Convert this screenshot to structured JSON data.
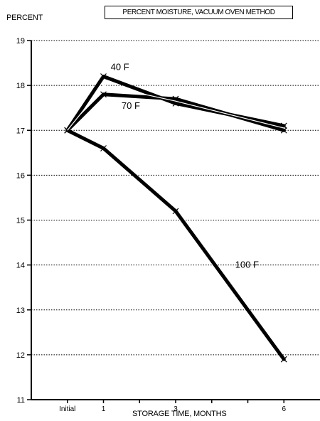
{
  "chart_data": {
    "type": "line",
    "title": "PERCENT MOISTURE, VACUUM OVEN METHOD",
    "ylabel": "PERCENT",
    "xlabel": "STORAGE TIME, MONTHS",
    "x_ticks": [
      {
        "label": "Initial",
        "x": 0
      },
      {
        "label": "1",
        "x": 1
      },
      {
        "label": "3",
        "x": 3
      },
      {
        "label": "6",
        "x": 6
      }
    ],
    "xlim": [
      -1,
      7
    ],
    "ylim": [
      11,
      19
    ],
    "y_ticks": [
      11,
      12,
      13,
      14,
      15,
      16,
      17,
      18,
      19
    ],
    "grid": "horizontal dotted",
    "series": [
      {
        "name": "40 F",
        "x": [
          0,
          1,
          3,
          6
        ],
        "y": [
          17.0,
          18.2,
          17.6,
          17.1
        ]
      },
      {
        "name": "70 F",
        "x": [
          0,
          1,
          3,
          6
        ],
        "y": [
          17.0,
          17.8,
          17.7,
          17.0
        ]
      },
      {
        "name": "100 F",
        "x": [
          0,
          1,
          3,
          6
        ],
        "y": [
          17.0,
          16.6,
          15.2,
          11.9
        ]
      }
    ]
  }
}
